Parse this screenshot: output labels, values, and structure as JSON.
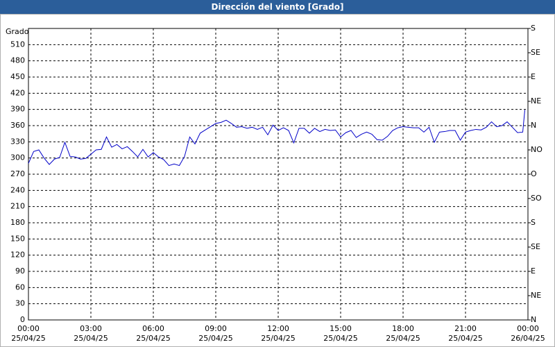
{
  "chart_data": {
    "type": "line",
    "title": "Dirección del viento [Grado]",
    "y_label": "Grado",
    "xlim": [
      0,
      24
    ],
    "xticks": [
      {
        "value": 0,
        "label": "00:00\n25/04/25"
      },
      {
        "value": 3,
        "label": "03:00\n25/04/25"
      },
      {
        "value": 6,
        "label": "06:00\n25/04/25"
      },
      {
        "value": 9,
        "label": "09:00\n25/04/25"
      },
      {
        "value": 12,
        "label": "12:00\n25/04/25"
      },
      {
        "value": 15,
        "label": "15:00\n25/04/25"
      },
      {
        "value": 18,
        "label": "18:00\n25/04/25"
      },
      {
        "value": 21,
        "label": "21:00\n25/04/25"
      },
      {
        "value": 24,
        "label": "00:00\n26/04/25"
      }
    ],
    "ylim": [
      0,
      540
    ],
    "yticks": [
      0,
      30,
      60,
      90,
      120,
      150,
      180,
      210,
      240,
      270,
      300,
      330,
      360,
      390,
      420,
      450,
      480,
      510
    ],
    "y2lim": [
      0,
      540
    ],
    "y2ticks": [
      {
        "value": 0,
        "label": "N"
      },
      {
        "value": 45,
        "label": "NE"
      },
      {
        "value": 90,
        "label": "E"
      },
      {
        "value": 135,
        "label": "SE"
      },
      {
        "value": 180,
        "label": "S"
      },
      {
        "value": 225,
        "label": "SO"
      },
      {
        "value": 270,
        "label": "O"
      },
      {
        "value": 315,
        "label": "NO"
      },
      {
        "value": 360,
        "label": "N"
      },
      {
        "value": 405,
        "label": "NE"
      },
      {
        "value": 450,
        "label": "E"
      },
      {
        "value": 495,
        "label": "SE"
      },
      {
        "value": 540,
        "label": "S"
      }
    ],
    "grid": true,
    "color": "#0000c8",
    "x": [
      0,
      0.25,
      0.5,
      0.75,
      1,
      1.25,
      1.5,
      1.75,
      2,
      2.25,
      2.5,
      2.75,
      3,
      3.25,
      3.5,
      3.75,
      4,
      4.25,
      4.5,
      4.75,
      5,
      5.25,
      5.5,
      5.75,
      6,
      6.25,
      6.5,
      6.75,
      7,
      7.25,
      7.5,
      7.75,
      8,
      8.25,
      8.5,
      8.75,
      9,
      9.25,
      9.5,
      9.75,
      10,
      10.25,
      10.5,
      10.75,
      11,
      11.25,
      11.5,
      11.75,
      12,
      12.25,
      12.5,
      12.75,
      13,
      13.25,
      13.5,
      13.75,
      14,
      14.25,
      14.5,
      14.75,
      15,
      15.25,
      15.5,
      15.75,
      16,
      16.25,
      16.5,
      16.75,
      17,
      17.25,
      17.5,
      17.75,
      18,
      18.25,
      18.5,
      18.75,
      19,
      19.25,
      19.5,
      19.75,
      20,
      20.25,
      20.5,
      20.75,
      21,
      21.25,
      21.5,
      21.75,
      22,
      22.25,
      22.5,
      22.75,
      23,
      23.25,
      23.5,
      23.75,
      23.85
    ],
    "values": [
      290,
      312,
      315,
      300,
      288,
      298,
      301,
      329,
      303,
      302,
      298,
      299,
      307,
      315,
      316,
      339,
      320,
      325,
      317,
      321,
      312,
      302,
      316,
      302,
      310,
      302,
      297,
      286,
      289,
      286,
      303,
      339,
      326,
      346,
      352,
      358,
      364,
      366,
      370,
      364,
      357,
      358,
      355,
      357,
      353,
      357,
      343,
      361,
      351,
      356,
      351,
      328,
      355,
      355,
      346,
      355,
      349,
      353,
      351,
      352,
      339,
      347,
      351,
      338,
      344,
      348,
      344,
      334,
      333,
      340,
      351,
      356,
      358,
      357,
      356,
      356,
      348,
      357,
      329,
      348,
      349,
      351,
      351,
      333,
      348,
      351,
      353,
      352,
      357,
      367,
      358,
      360,
      367,
      357,
      347,
      348,
      389
    ]
  }
}
